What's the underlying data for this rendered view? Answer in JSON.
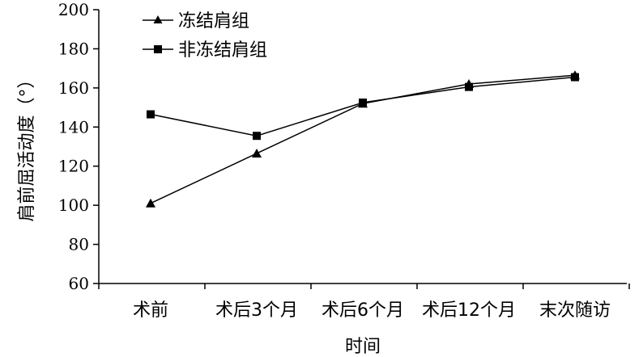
{
  "chart_data": {
    "type": "line",
    "title": "",
    "xlabel": "时间",
    "ylabel": "肩前屈活动度（°）",
    "categories": [
      "术前",
      "术后3个月",
      "术后6个月",
      "术后12个月",
      "末次随访"
    ],
    "ylim": [
      60,
      200
    ],
    "yticks": [
      "60",
      "80",
      "100",
      "120",
      "140",
      "160",
      "180",
      "200"
    ],
    "grid": false,
    "legend_position": "top-left",
    "series": [
      {
        "name": "冻结肩组",
        "marker": "triangle",
        "color": "#000000",
        "values": [
          101,
          126.5,
          152,
          162,
          166.5
        ]
      },
      {
        "name": "非冻结肩组",
        "marker": "square",
        "color": "#000000",
        "values": [
          146.5,
          135.5,
          152.5,
          160.5,
          165.5
        ]
      }
    ]
  }
}
